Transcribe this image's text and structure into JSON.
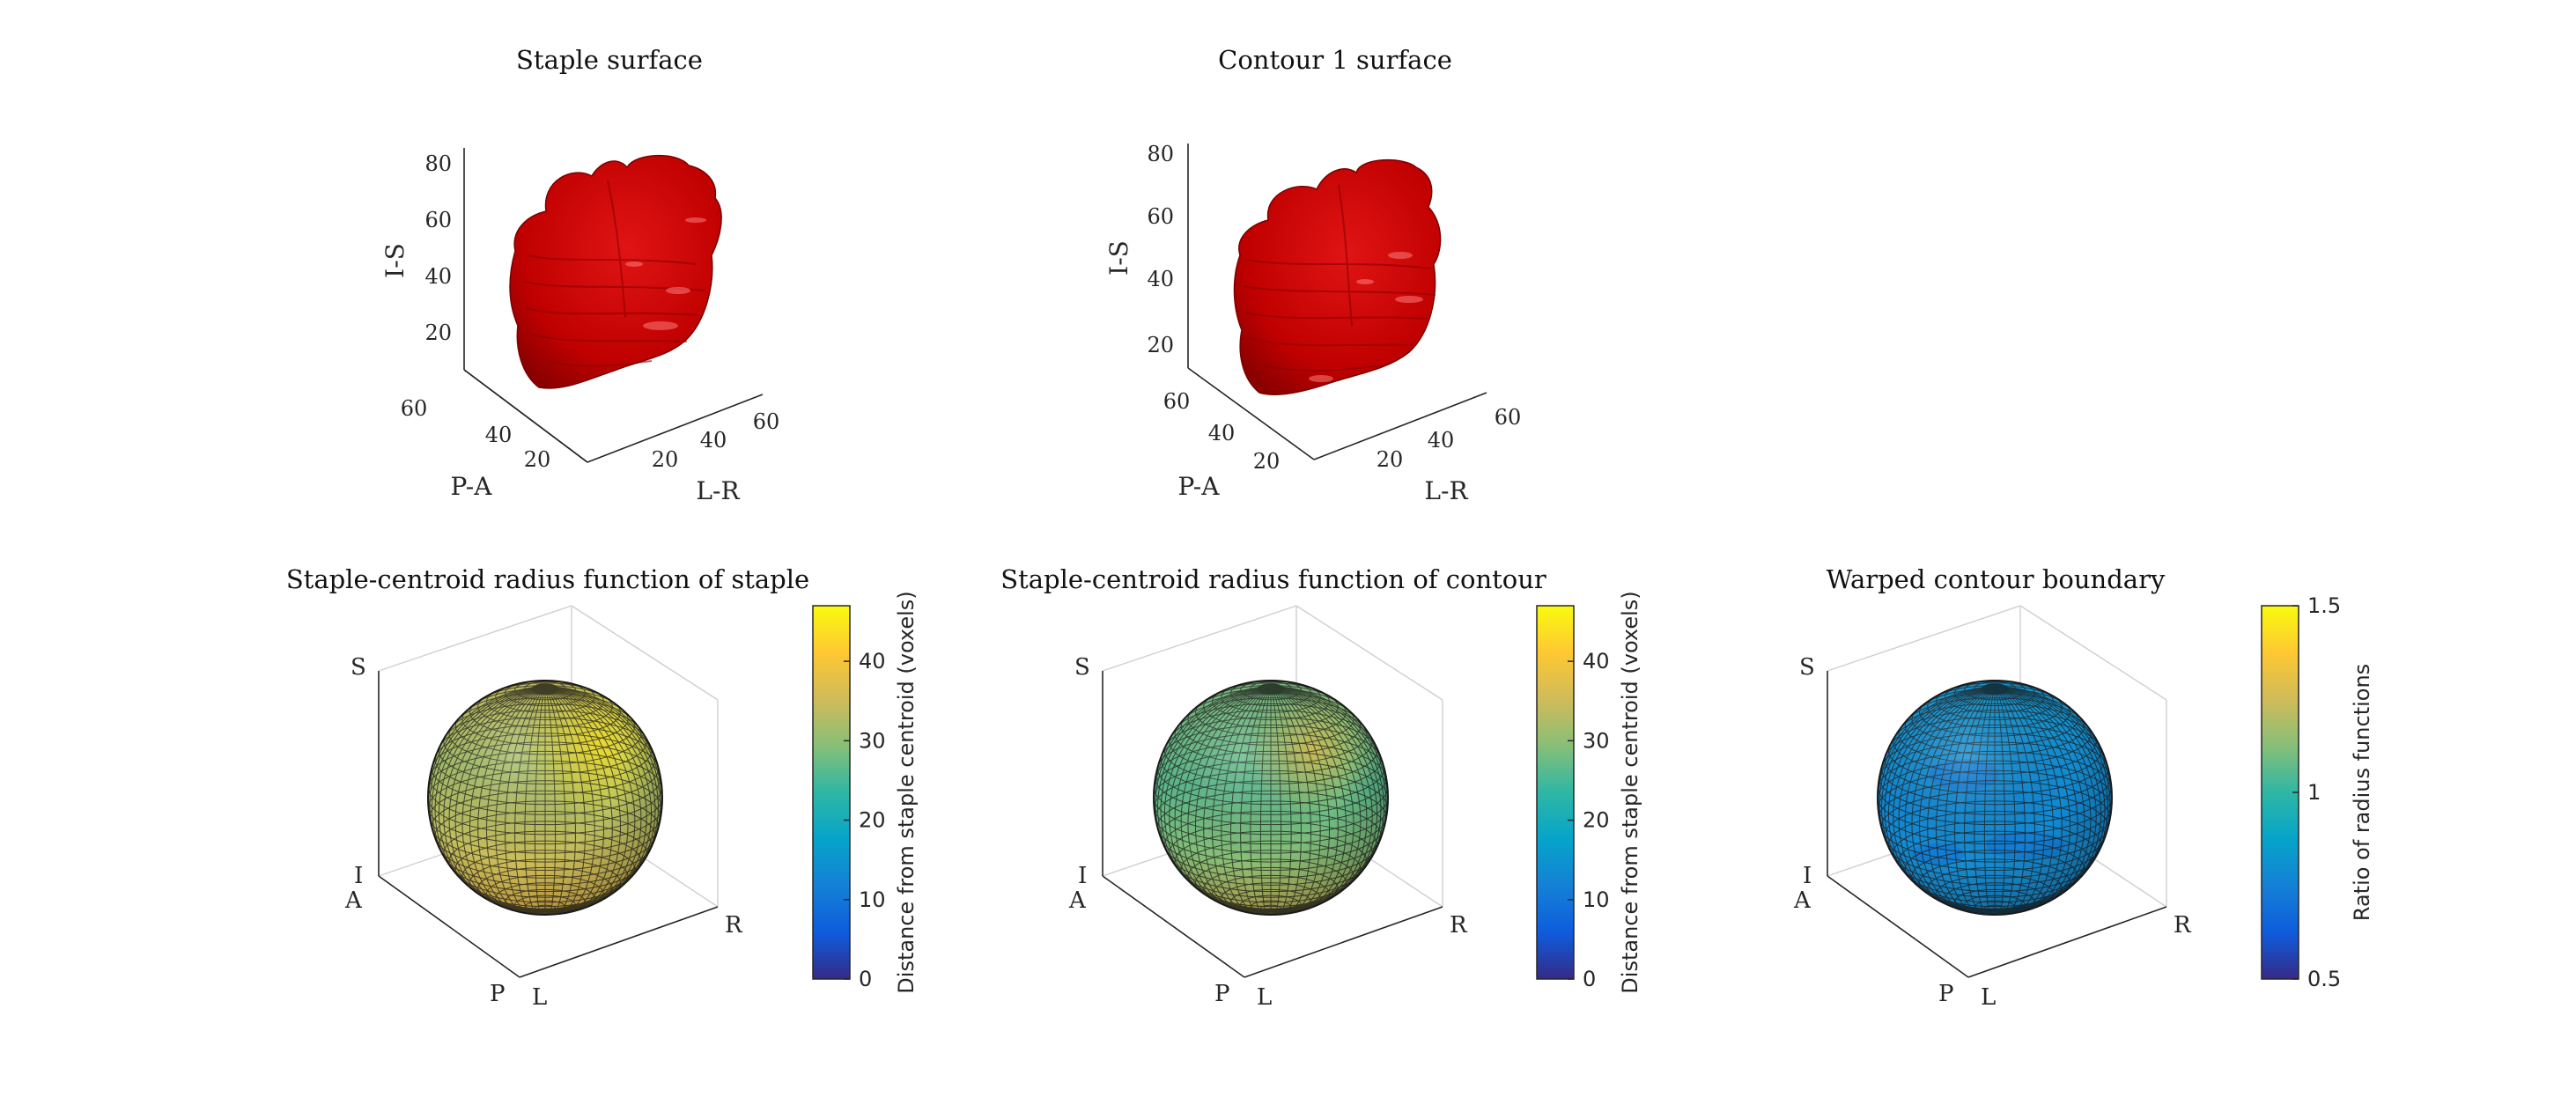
{
  "figure": {
    "panels": [
      {
        "id": "staple-surface",
        "title": "Staple surface",
        "kind": "surface3d",
        "surface_color": "#d40000",
        "axes": {
          "z": {
            "label": "I-S",
            "ticks": [
              "20",
              "40",
              "60",
              "80"
            ]
          },
          "y": {
            "label": "P-A",
            "ticks": [
              "20",
              "40",
              "60"
            ]
          },
          "x": {
            "label": "L-R",
            "ticks": [
              "20",
              "40",
              "60"
            ]
          }
        }
      },
      {
        "id": "contour-surface",
        "title": "Contour 1 surface",
        "kind": "surface3d",
        "surface_color": "#cc0000",
        "axes": {
          "z": {
            "label": "I-S",
            "ticks": [
              "20",
              "40",
              "60",
              "80"
            ]
          },
          "y": {
            "label": "P-A",
            "ticks": [
              "20",
              "40",
              "60"
            ]
          },
          "x": {
            "label": "L-R",
            "ticks": [
              "20",
              "40",
              "60"
            ]
          }
        }
      },
      {
        "id": "staple-radius-sphere",
        "title": "Staple-centroid radius function of staple",
        "kind": "sphere",
        "orientation_labels": {
          "S": "S",
          "I": "I",
          "A": "A",
          "P": "P",
          "L": "L",
          "R": "R"
        },
        "colorbar": {
          "label": "Distance from staple centroid (voxels)",
          "ticks": [
            "0",
            "10",
            "20",
            "30",
            "40"
          ],
          "range": [
            0,
            47
          ]
        },
        "color_value_range": [
          22,
          40
        ]
      },
      {
        "id": "contour-radius-sphere",
        "title": "Staple-centroid radius function of contour",
        "kind": "sphere",
        "orientation_labels": {
          "S": "S",
          "I": "I",
          "A": "A",
          "P": "P",
          "L": "L",
          "R": "R"
        },
        "colorbar": {
          "label": "Distance from staple centroid (voxels)",
          "ticks": [
            "0",
            "10",
            "20",
            "30",
            "40"
          ],
          "range": [
            0,
            47
          ]
        },
        "color_value_range": [
          20,
          37
        ]
      },
      {
        "id": "warped-boundary-sphere",
        "title": "Warped contour boundary",
        "kind": "sphere",
        "orientation_labels": {
          "S": "S",
          "I": "I",
          "A": "A",
          "P": "P",
          "L": "L",
          "R": "R"
        },
        "colorbar": {
          "label": "Ratio of radius functions",
          "ticks": [
            "0.5",
            "1",
            "1.5"
          ],
          "range": [
            0.5,
            1.5
          ]
        },
        "color_value_range": [
          0.88,
          1.0
        ]
      }
    ]
  },
  "chart_data": [
    {
      "type": "surface3d",
      "title": "Staple surface",
      "xlabel": "L-R",
      "ylabel": "P-A",
      "zlabel": "I-S",
      "xticks": [
        20,
        40,
        60
      ],
      "yticks": [
        20,
        40,
        60
      ],
      "zticks": [
        20,
        40,
        60,
        80
      ],
      "grid": false
    },
    {
      "type": "surface3d",
      "title": "Contour 1 surface",
      "xlabel": "L-R",
      "ylabel": "P-A",
      "zlabel": "I-S",
      "xticks": [
        20,
        40,
        60
      ],
      "yticks": [
        20,
        40,
        60
      ],
      "zticks": [
        20,
        40,
        60,
        80
      ],
      "grid": false
    },
    {
      "type": "heatmap",
      "title": "Staple-centroid radius function of staple",
      "colorbar_label": "Distance from staple centroid (voxels)",
      "clim": [
        0,
        47
      ],
      "colorbar_ticks": [
        0,
        10,
        20,
        30,
        40
      ],
      "approx_value_range": [
        22,
        40
      ],
      "colormap": "parula"
    },
    {
      "type": "heatmap",
      "title": "Staple-centroid radius function of contour",
      "colorbar_label": "Distance from staple centroid (voxels)",
      "clim": [
        0,
        47
      ],
      "colorbar_ticks": [
        0,
        10,
        20,
        30,
        40
      ],
      "approx_value_range": [
        20,
        37
      ],
      "colormap": "parula"
    },
    {
      "type": "heatmap",
      "title": "Warped contour boundary",
      "colorbar_label": "Ratio of radius functions",
      "clim": [
        0.5,
        1.5
      ],
      "colorbar_ticks": [
        0.5,
        1,
        1.5
      ],
      "approx_value_range": [
        0.88,
        1.0
      ],
      "colormap": "parula"
    }
  ]
}
